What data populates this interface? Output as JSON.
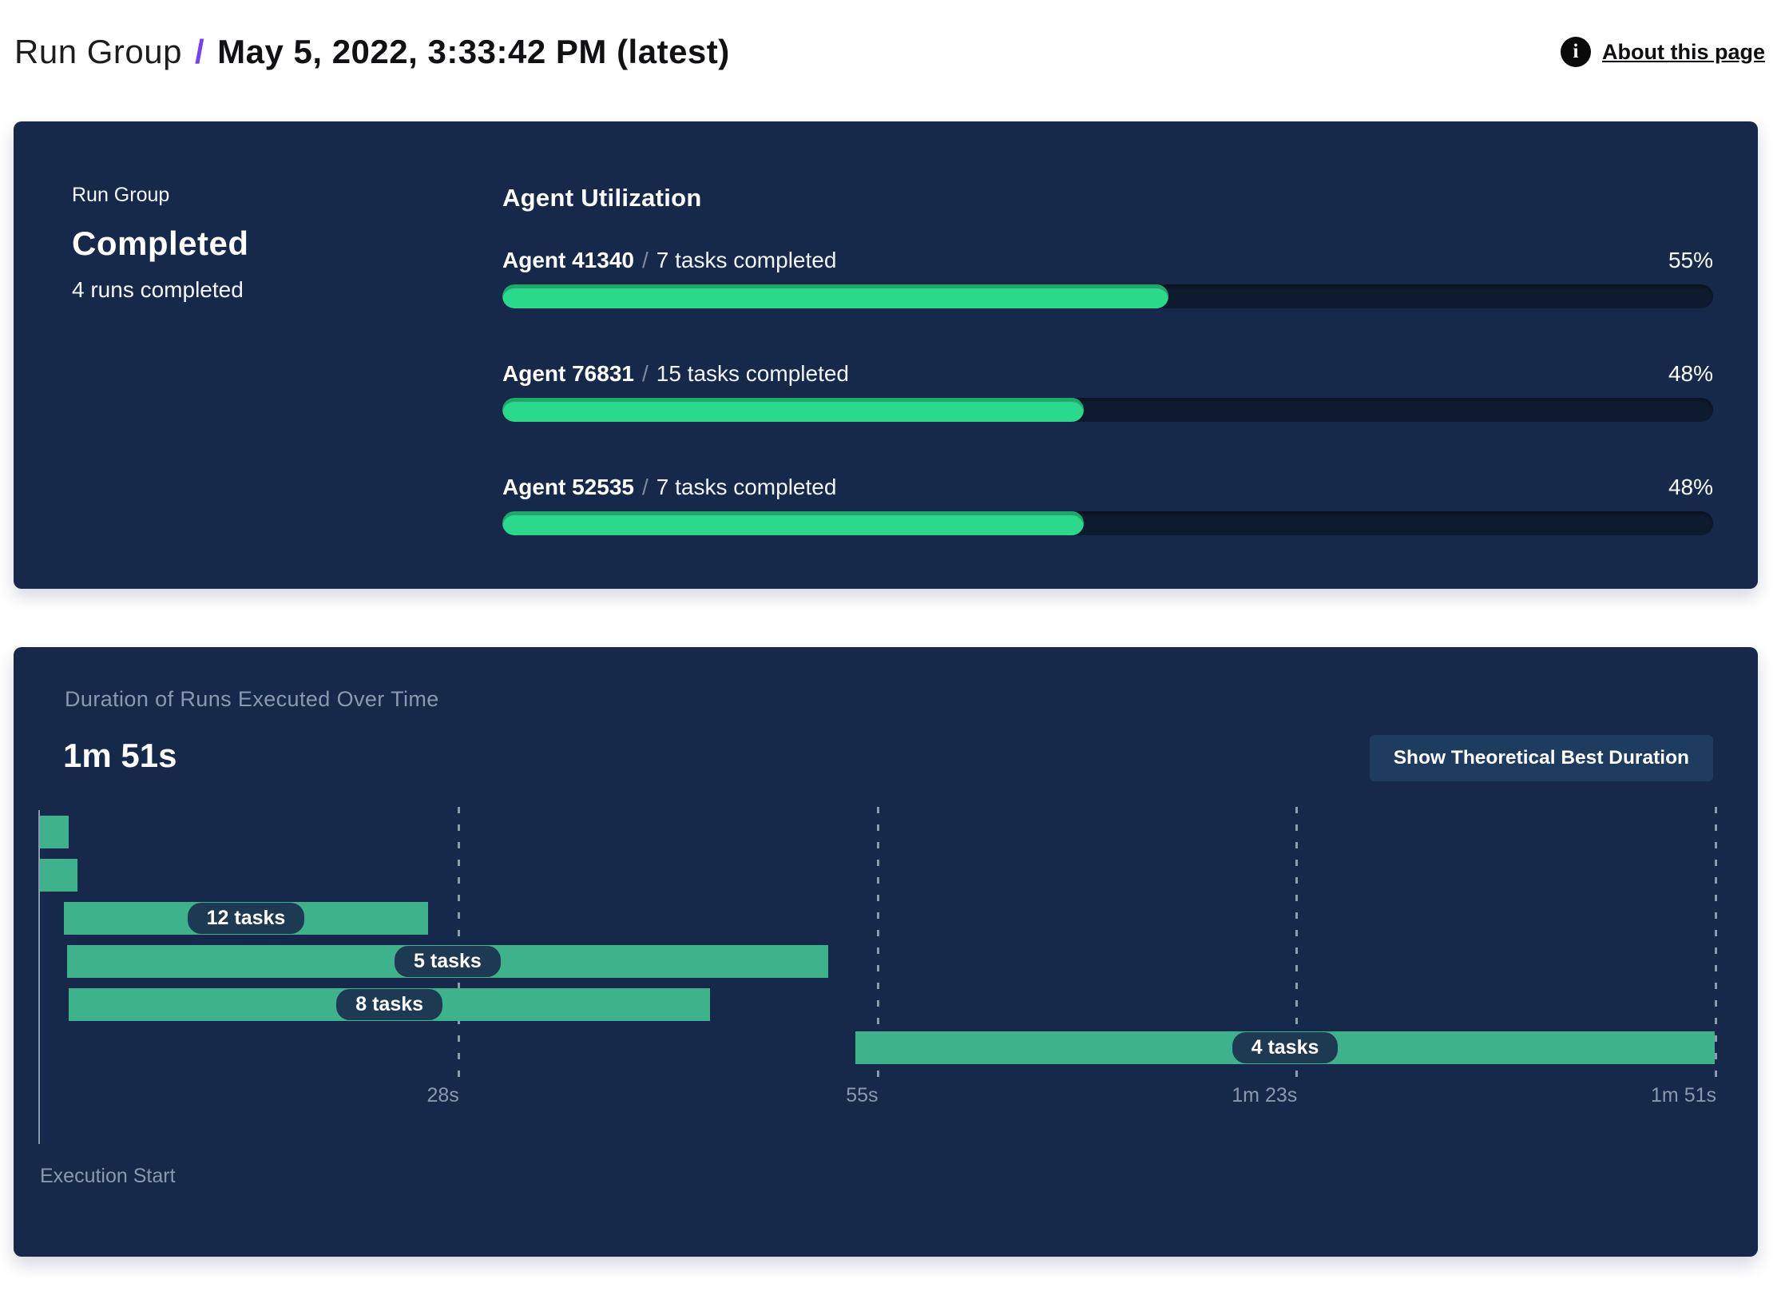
{
  "header": {
    "breadcrumb": {
      "section": "Run Group",
      "separator": "/",
      "current": "May 5, 2022, 3:33:42 PM (latest)"
    },
    "about": {
      "label": "About this page",
      "icon_glyph": "i"
    }
  },
  "status_panel": {
    "label": "Run Group",
    "status": "Completed",
    "subtitle": "4 runs completed",
    "utilization": {
      "title": "Agent Utilization",
      "separator": "/",
      "agents": [
        {
          "name": "Agent 41340",
          "tasks": "7 tasks completed",
          "percent_label": "55%",
          "percent_value": 55
        },
        {
          "name": "Agent 76831",
          "tasks": "15 tasks completed",
          "percent_label": "48%",
          "percent_value": 48
        },
        {
          "name": "Agent 52535",
          "tasks": "7 tasks completed",
          "percent_label": "48%",
          "percent_value": 48
        }
      ]
    }
  },
  "duration_panel": {
    "title": "Duration of Runs Executed Over Time",
    "total_duration": "1m 51s",
    "button_label": "Show Theoretical Best Duration",
    "origin_label": "Execution Start"
  },
  "chart_data": [
    {
      "type": "bar",
      "orientation": "horizontal",
      "title": "Agent Utilization",
      "categories": [
        "Agent 41340",
        "Agent 76831",
        "Agent 52535"
      ],
      "values": [
        55,
        48,
        48
      ],
      "value_unit": "%",
      "xlim": [
        0,
        100
      ],
      "annotations": [
        "7 tasks completed",
        "15 tasks completed",
        "7 tasks completed"
      ]
    },
    {
      "type": "gantt",
      "title": "Duration of Runs Executed Over Time",
      "total_duration_label": "1m 51s",
      "time_axis": {
        "range_seconds": [
          0,
          111
        ],
        "ticks_seconds": [
          27.75,
          55.5,
          83.25,
          111
        ],
        "tick_labels": [
          "28s",
          "55s",
          "1m 23s",
          "1m 51s"
        ],
        "origin_label": "Execution Start",
        "grid": "dashed-vertical"
      },
      "runs": [
        {
          "label": "",
          "start_s": 0.1,
          "end_s": 2.0
        },
        {
          "label": "",
          "start_s": 0.1,
          "end_s": 2.6
        },
        {
          "label": "12 tasks",
          "start_s": 1.7,
          "end_s": 25.8
        },
        {
          "label": "5 tasks",
          "start_s": 1.9,
          "end_s": 52.3
        },
        {
          "label": "8 tasks",
          "start_s": 2.0,
          "end_s": 44.5
        },
        {
          "label": "4 tasks",
          "start_s": 54.1,
          "end_s": 111
        }
      ]
    }
  ],
  "colors": {
    "panel_bg": "#16294a",
    "progress_track": "#0e1b2e",
    "progress_fill_green": "#2bd98a",
    "gantt_bar_green": "#3eb38b",
    "pill_bg": "#1d3a52",
    "button_bg": "#1e3c60",
    "muted_text": "#8b99ae",
    "accent_purple": "#7442f6",
    "header_text": "#111114",
    "page_bg": "#ffffff"
  }
}
